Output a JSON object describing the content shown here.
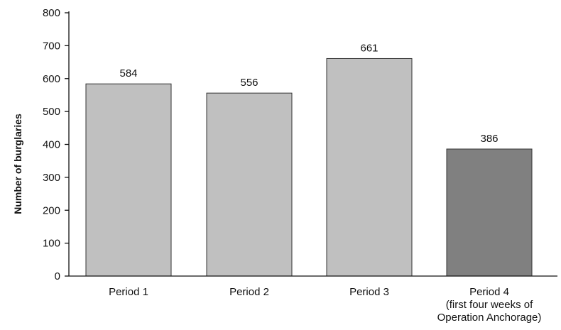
{
  "chart_data": {
    "type": "bar",
    "title": "",
    "xlabel": "",
    "ylabel": "Number of burglaries",
    "ylim": [
      0,
      800
    ],
    "yticks": [
      0,
      100,
      200,
      300,
      400,
      500,
      600,
      700,
      800
    ],
    "grid": false,
    "categories": [
      [
        "Period 1"
      ],
      [
        "Period 2"
      ],
      [
        "Period 3"
      ],
      [
        "Period 4",
        "(first four weeks of",
        "Operation Anchorage)"
      ]
    ],
    "values": [
      584,
      556,
      661,
      386
    ],
    "value_labels": [
      "584",
      "556",
      "661",
      "386"
    ],
    "bar_colors": [
      "#c0c0c0",
      "#c0c0c0",
      "#c0c0c0",
      "#808080"
    ]
  }
}
